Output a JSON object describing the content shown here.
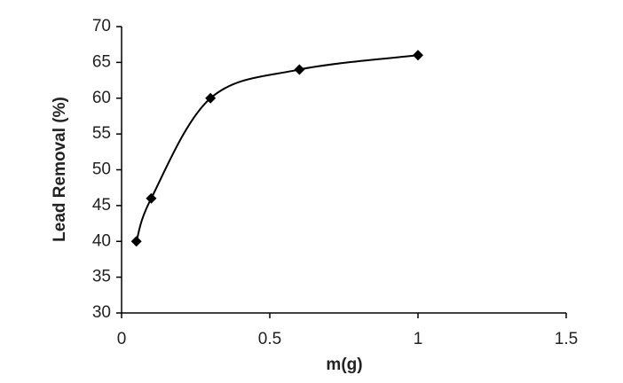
{
  "chart_data": {
    "type": "line",
    "x_label": "m(g)",
    "y_label": "Lead  Removal (%)",
    "x": [
      0.05,
      0.1,
      0.3,
      0.6,
      1
    ],
    "series": [
      {
        "color": "#000000",
        "values": [
          40,
          46,
          60,
          64,
          66
        ]
      }
    ],
    "xlim": [
      0,
      1.5
    ],
    "xticks": [
      0,
      0.5,
      1,
      1.5
    ],
    "ylim": [
      30,
      70
    ],
    "yticks": [
      30,
      35,
      40,
      45,
      50,
      55,
      60,
      65,
      70
    ],
    "smooth": true,
    "marker": "diamond"
  }
}
